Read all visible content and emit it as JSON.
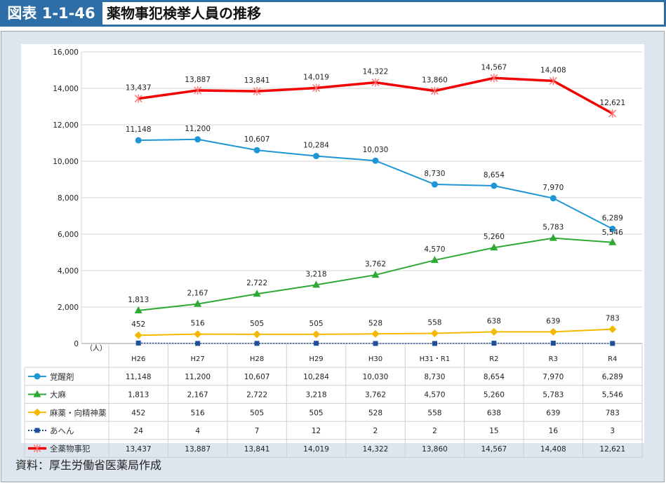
{
  "header": {
    "figure_no": "図表 1-1-46",
    "title": "薬物事犯検挙人員の推移"
  },
  "source": "資料：厚生労働省医薬局作成",
  "chart_data": {
    "type": "line",
    "title": "薬物事犯検挙人員の推移",
    "xlabel": "",
    "ylabel": "（人）",
    "ylim": [
      0,
      16000
    ],
    "yticks": [
      0,
      2000,
      4000,
      6000,
      8000,
      10000,
      12000,
      14000,
      16000
    ],
    "ytick_labels": [
      "0",
      "2,000",
      "4,000",
      "6,000",
      "8,000",
      "10,000",
      "12,000",
      "14,000",
      "16,000"
    ],
    "grid": true,
    "legend": "table-below",
    "categories": [
      "H26",
      "H27",
      "H28",
      "H29",
      "H30",
      "H31・R1",
      "R2",
      "R3",
      "R4"
    ],
    "series": [
      {
        "name": "覚醒剤",
        "color": "#1e96d6",
        "marker": "circle",
        "dash": false,
        "labels": true,
        "values": [
          11148,
          11200,
          10607,
          10284,
          10030,
          8730,
          8654,
          7970,
          6289
        ],
        "display": [
          "11,148",
          "11,200",
          "10,607",
          "10,284",
          "10,030",
          "8,730",
          "8,654",
          "7,970",
          "6,289"
        ]
      },
      {
        "name": "大麻",
        "color": "#2ea935",
        "marker": "triangle",
        "dash": false,
        "labels": true,
        "values": [
          1813,
          2167,
          2722,
          3218,
          3762,
          4570,
          5260,
          5783,
          5546
        ],
        "display": [
          "1,813",
          "2,167",
          "2,722",
          "3,218",
          "3,762",
          "4,570",
          "5,260",
          "5,783",
          "5,546"
        ]
      },
      {
        "name": "麻薬・向精神薬",
        "color": "#f5b800",
        "marker": "diamond",
        "dash": false,
        "labels": true,
        "values": [
          452,
          516,
          505,
          505,
          528,
          558,
          638,
          639,
          783
        ],
        "display": [
          "452",
          "516",
          "505",
          "505",
          "528",
          "558",
          "638",
          "639",
          "783"
        ]
      },
      {
        "name": "あへん",
        "color": "#1f4f9a",
        "marker": "square",
        "dash": true,
        "labels": false,
        "values": [
          24,
          4,
          7,
          12,
          2,
          2,
          15,
          16,
          3
        ],
        "display": [
          "24",
          "4",
          "7",
          "12",
          "2",
          "2",
          "15",
          "16",
          "3"
        ]
      },
      {
        "name": "全薬物事犯",
        "color": "#f20000",
        "marker": "asterisk",
        "dash": false,
        "labels": true,
        "values": [
          13437,
          13887,
          13841,
          14019,
          14322,
          13860,
          14567,
          14408,
          12621
        ],
        "display": [
          "13,437",
          "13,887",
          "13,841",
          "14,019",
          "14,322",
          "13,860",
          "14,567",
          "14,408",
          "12,621"
        ]
      }
    ]
  }
}
